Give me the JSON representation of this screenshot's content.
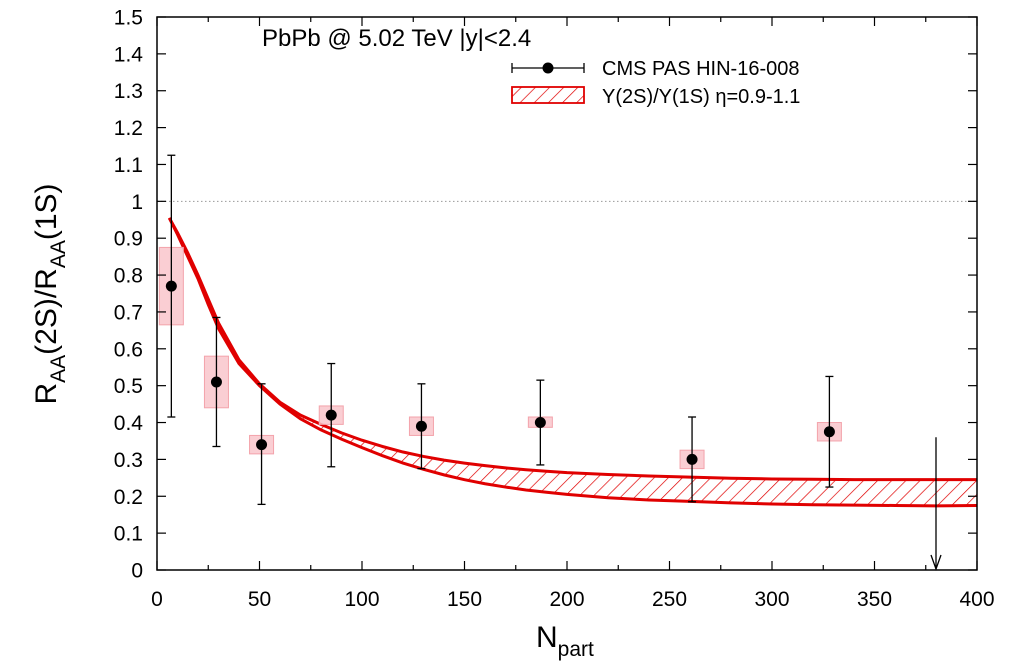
{
  "chart_data": {
    "type": "scatter",
    "title": "PbPb @ 5.02 TeV |y|<2.4",
    "xlabel": {
      "main": "N",
      "sub": "part"
    },
    "ylabel": {
      "p1": "R",
      "s1": "AA",
      "p2": "(2S)/R",
      "s2": "AA",
      "p3": "(1S)"
    },
    "xlim": [
      0,
      400
    ],
    "ylim": [
      0,
      1.5
    ],
    "x_ticks": [
      "0",
      "50",
      "100",
      "150",
      "200",
      "250",
      "300",
      "350",
      "400"
    ],
    "y_ticks": [
      "0",
      "0.1",
      "0.2",
      "0.3",
      "0.4",
      "0.5",
      "0.6",
      "0.7",
      "0.8",
      "0.9",
      "1",
      "1.1",
      "1.2",
      "1.3",
      "1.4",
      "1.5"
    ],
    "reference_line": 1,
    "legend": {
      "position": "top-right",
      "data_label": "CMS PAS HIN-16-008",
      "band_label": "Υ(2S)/Υ(1S) η=0.9-1.1"
    },
    "series": [
      {
        "name": "CMS PAS HIN-16-008",
        "kind": "points",
        "color": "#000000",
        "points": [
          {
            "x": 7,
            "y": 0.77,
            "stat_low": 0.415,
            "stat_high": 1.125,
            "sys_low": 0.665,
            "sys_high": 0.875
          },
          {
            "x": 29,
            "y": 0.51,
            "stat_low": 0.335,
            "stat_high": 0.685,
            "sys_low": 0.44,
            "sys_high": 0.58
          },
          {
            "x": 51,
            "y": 0.34,
            "stat_low": 0.178,
            "stat_high": 0.505,
            "sys_low": 0.315,
            "sys_high": 0.365
          },
          {
            "x": 85,
            "y": 0.42,
            "stat_low": 0.28,
            "stat_high": 0.56,
            "sys_low": 0.395,
            "sys_high": 0.445
          },
          {
            "x": 129,
            "y": 0.39,
            "stat_low": 0.275,
            "stat_high": 0.505,
            "sys_low": 0.365,
            "sys_high": 0.415
          },
          {
            "x": 187,
            "y": 0.4,
            "stat_low": 0.285,
            "stat_high": 0.515,
            "sys_low": 0.387,
            "sys_high": 0.415
          },
          {
            "x": 261,
            "y": 0.3,
            "stat_low": 0.185,
            "stat_high": 0.415,
            "sys_low": 0.275,
            "sys_high": 0.325
          },
          {
            "x": 328,
            "y": 0.375,
            "stat_low": 0.225,
            "stat_high": 0.525,
            "sys_low": 0.35,
            "sys_high": 0.4
          }
        ],
        "upper_limit": {
          "x": 380,
          "y": 0.36
        }
      },
      {
        "name": "Υ(2S)/Υ(1S) η=0.9-1.1",
        "kind": "band",
        "color": "#e00000",
        "x": [
          6,
          10,
          15,
          20,
          25,
          30,
          40,
          50,
          60,
          70,
          80,
          90,
          100,
          110,
          120,
          130,
          140,
          150,
          160,
          170,
          180,
          190,
          200,
          220,
          240,
          260,
          280,
          300,
          320,
          340,
          360,
          380,
          400
        ],
        "upper": [
          0.955,
          0.915,
          0.86,
          0.8,
          0.735,
          0.67,
          0.57,
          0.505,
          0.455,
          0.42,
          0.395,
          0.372,
          0.352,
          0.335,
          0.32,
          0.308,
          0.298,
          0.29,
          0.283,
          0.277,
          0.272,
          0.268,
          0.264,
          0.259,
          0.255,
          0.252,
          0.249,
          0.247,
          0.246,
          0.245,
          0.245,
          0.245,
          0.245
        ],
        "lower": [
          0.955,
          0.91,
          0.85,
          0.79,
          0.72,
          0.655,
          0.56,
          0.5,
          0.45,
          0.41,
          0.38,
          0.355,
          0.332,
          0.31,
          0.29,
          0.273,
          0.258,
          0.245,
          0.234,
          0.225,
          0.217,
          0.211,
          0.205,
          0.196,
          0.19,
          0.186,
          0.182,
          0.179,
          0.177,
          0.176,
          0.175,
          0.174,
          0.175
        ]
      }
    ]
  }
}
